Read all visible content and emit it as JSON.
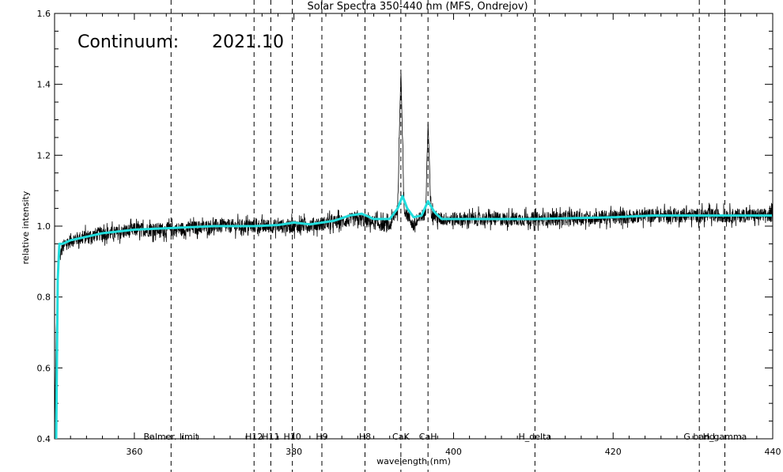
{
  "chart_data": {
    "type": "line",
    "title": "Solar Spectra 350-440 nm (MFS, Ondrejov)",
    "xlabel": "wavelength (nm)",
    "ylabel": "relative intensity",
    "xlim": [
      350,
      440
    ],
    "ylim": [
      0.4,
      1.6
    ],
    "x_ticks": [
      360,
      380,
      400,
      420,
      440
    ],
    "x_tick_labels": [
      "360",
      "380",
      "400",
      "420",
      "440"
    ],
    "y_ticks": [
      0.4,
      0.6,
      0.8,
      1.0,
      1.2,
      1.4,
      1.6
    ],
    "y_tick_labels": [
      "0.4",
      "0.6",
      "0.8",
      "1.0",
      "1.2",
      "1.4",
      "1.6"
    ],
    "annotation": {
      "label": "Continuum:",
      "value": "2021.10"
    },
    "spectral_lines": [
      {
        "label": "Balmer. limit",
        "x": 364.6
      },
      {
        "label": "H12",
        "x": 375.0
      },
      {
        "label": "H11",
        "x": 377.1
      },
      {
        "label": "H10",
        "x": 379.8
      },
      {
        "label": "H9",
        "x": 383.5
      },
      {
        "label": "H8",
        "x": 388.9
      },
      {
        "label": "CaK",
        "x": 393.4
      },
      {
        "label": "CaH",
        "x": 396.8
      },
      {
        "label": "H_delta",
        "x": 410.2
      },
      {
        "label": "G band",
        "x": 430.8
      },
      {
        "label": "H_gamma",
        "x": 434.0
      }
    ],
    "series": [
      {
        "style": "noisy",
        "color": "#000000",
        "x": [
          350.0,
          350.2,
          350.5,
          351.0,
          352.0,
          354.0,
          356.0,
          358.0,
          360.0,
          365.0,
          370.0,
          375.0,
          380.0,
          385.0,
          388.0,
          390.0,
          392.0,
          393.0,
          393.4,
          393.8,
          395.0,
          396.5,
          396.8,
          397.2,
          398.0,
          400.0,
          410.0,
          420.0,
          425.0,
          430.0,
          435.0,
          440.0
        ],
        "y": [
          0.4,
          0.7,
          0.9,
          0.94,
          0.96,
          0.97,
          0.98,
          0.98,
          0.99,
          0.99,
          1.0,
          1.0,
          1.0,
          1.01,
          1.02,
          1.01,
          1.0,
          1.05,
          1.44,
          1.05,
          1.0,
          1.04,
          1.29,
          1.04,
          1.02,
          1.02,
          1.02,
          1.025,
          1.03,
          1.03,
          1.03,
          1.03
        ],
        "noise_amplitude": 0.02
      },
      {
        "style": "smooth",
        "color": "#22dddd",
        "x": [
          350.2,
          350.4,
          350.6,
          351.0,
          352.0,
          354.0,
          356.0,
          358.0,
          360.0,
          365.0,
          370.0,
          375.0,
          378.0,
          380.0,
          382.0,
          385.0,
          387.0,
          388.5,
          390.0,
          392.0,
          393.0,
          393.6,
          394.2,
          395.0,
          396.0,
          396.8,
          397.6,
          398.5,
          400.0,
          410.0,
          420.0,
          425.0,
          430.0,
          435.0,
          440.0
        ],
        "y": [
          0.4,
          0.85,
          0.95,
          0.95,
          0.96,
          0.97,
          0.98,
          0.985,
          0.99,
          0.995,
          1.0,
          1.0,
          1.003,
          1.01,
          1.005,
          1.015,
          1.03,
          1.035,
          1.02,
          1.02,
          1.05,
          1.085,
          1.05,
          1.025,
          1.03,
          1.07,
          1.04,
          1.02,
          1.02,
          1.02,
          1.025,
          1.03,
          1.03,
          1.03,
          1.03
        ]
      }
    ]
  }
}
